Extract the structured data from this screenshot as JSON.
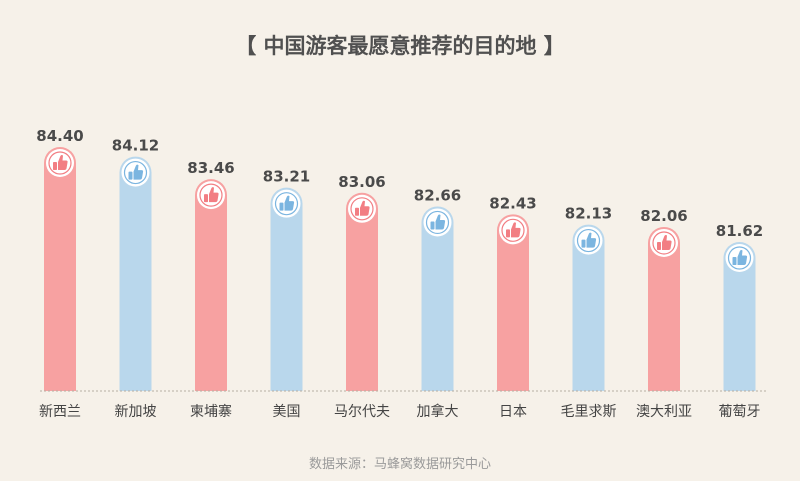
{
  "title": "【 中国游客最愿意推荐的目的地 】",
  "source": "数据来源：马蜂窝数据研究中心",
  "colors": {
    "pink": "#f7a1a1",
    "blue": "#b9d7ec",
    "pink_icon": "#f27e83",
    "blue_icon": "#7bb5e0",
    "baseline": "#b5aea4"
  },
  "icon": "thumbs-up-icon",
  "chart_data": {
    "type": "bar",
    "title": "【 中国游客最愿意推荐的目的地 】",
    "categories": [
      "新西兰",
      "新加坡",
      "柬埔寨",
      "美国",
      "马尔代夫",
      "加拿大",
      "日本",
      "毛里求斯",
      "澳大利亚",
      "葡萄牙"
    ],
    "values": [
      84.4,
      84.12,
      83.46,
      83.21,
      83.06,
      82.66,
      82.43,
      82.13,
      82.06,
      81.62
    ],
    "value_labels": [
      "84.40",
      "84.12",
      "83.46",
      "83.21",
      "83.06",
      "82.66",
      "82.43",
      "82.13",
      "82.06",
      "81.62"
    ],
    "bar_colors": [
      "pink",
      "blue",
      "pink",
      "blue",
      "pink",
      "blue",
      "pink",
      "blue",
      "pink",
      "blue"
    ],
    "grid": false,
    "legend": "none",
    "xlabel": "",
    "ylabel": ""
  }
}
